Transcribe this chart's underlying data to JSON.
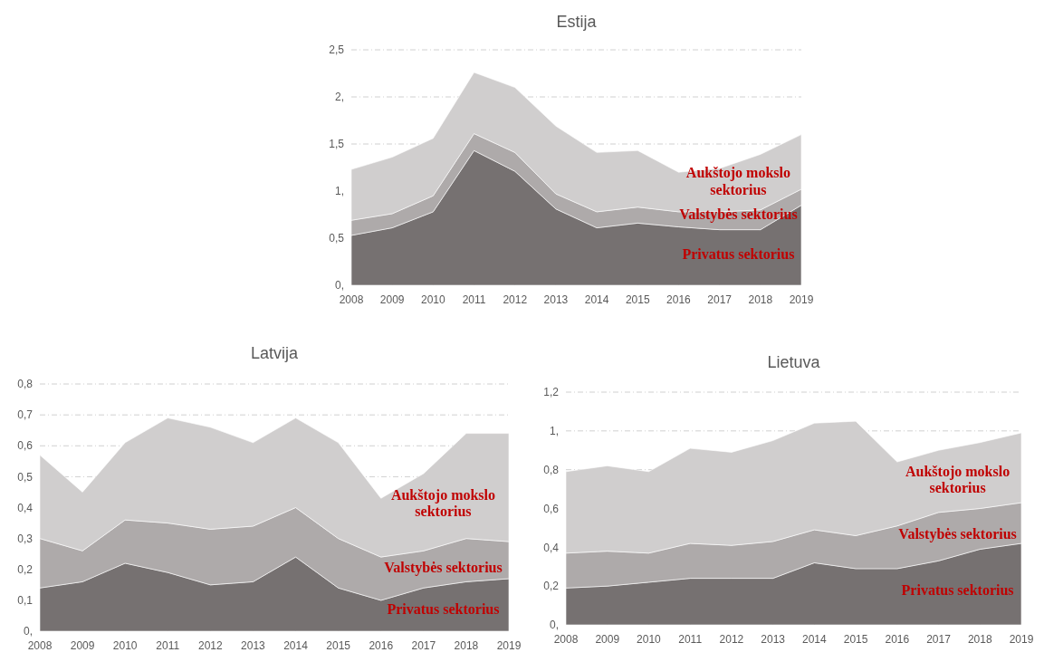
{
  "chart_data": [
    {
      "type": "area",
      "title": "Estija",
      "stacked": true,
      "grid": "y",
      "categories": [
        "2008",
        "2009",
        "2010",
        "2011",
        "2012",
        "2013",
        "2014",
        "2015",
        "2016",
        "2017",
        "2018",
        "2019"
      ],
      "ylim": [
        0,
        2.5
      ],
      "yticks": [
        {
          "value": 0,
          "label": "0,"
        },
        {
          "value": 0.5,
          "label": "0,5"
        },
        {
          "value": 1,
          "label": "1,"
        },
        {
          "value": 1.5,
          "label": "1,5"
        },
        {
          "value": 2,
          "label": "2,"
        },
        {
          "value": 2.5,
          "label": "2,5"
        }
      ],
      "series": [
        {
          "name": "Privatus sektorius",
          "color": "#767171",
          "values": [
            0.53,
            0.61,
            0.78,
            1.43,
            1.21,
            0.81,
            0.61,
            0.66,
            0.62,
            0.59,
            0.59,
            0.85
          ]
        },
        {
          "name": "Valstybės sektorius",
          "color": "#aeaaaa",
          "values": [
            0.16,
            0.15,
            0.17,
            0.18,
            0.2,
            0.16,
            0.17,
            0.17,
            0.16,
            0.19,
            0.21,
            0.17
          ]
        },
        {
          "name": "Aukštojo mokslo sektorius",
          "color": "#d0cece",
          "values": [
            0.54,
            0.6,
            0.61,
            0.65,
            0.69,
            0.72,
            0.63,
            0.6,
            0.42,
            0.46,
            0.59,
            0.58
          ]
        }
      ]
    },
    {
      "type": "area",
      "title": "Latvija",
      "stacked": true,
      "grid": "y",
      "categories": [
        "2008",
        "2009",
        "2010",
        "2011",
        "2012",
        "2013",
        "2014",
        "2015",
        "2016",
        "2017",
        "2018",
        "2019"
      ],
      "ylim": [
        0,
        0.8
      ],
      "yticks": [
        {
          "value": 0,
          "label": "0,"
        },
        {
          "value": 0.1,
          "label": "0,1"
        },
        {
          "value": 0.2,
          "label": "0,2"
        },
        {
          "value": 0.3,
          "label": "0,3"
        },
        {
          "value": 0.4,
          "label": "0,4"
        },
        {
          "value": 0.5,
          "label": "0,5"
        },
        {
          "value": 0.6,
          "label": "0,6"
        },
        {
          "value": 0.7,
          "label": "0,7"
        },
        {
          "value": 0.8,
          "label": "0,8"
        }
      ],
      "series": [
        {
          "name": "Privatus sektorius",
          "color": "#767171",
          "values": [
            0.14,
            0.16,
            0.22,
            0.19,
            0.15,
            0.16,
            0.24,
            0.14,
            0.1,
            0.14,
            0.16,
            0.17
          ]
        },
        {
          "name": "Valstybės sektorius",
          "color": "#aeaaaa",
          "values": [
            0.16,
            0.1,
            0.14,
            0.16,
            0.18,
            0.18,
            0.16,
            0.16,
            0.14,
            0.12,
            0.14,
            0.12
          ]
        },
        {
          "name": "Aukštojo mokslo sektorius",
          "color": "#d0cece",
          "values": [
            0.27,
            0.19,
            0.25,
            0.34,
            0.33,
            0.27,
            0.29,
            0.31,
            0.19,
            0.25,
            0.34,
            0.35
          ]
        }
      ]
    },
    {
      "type": "area",
      "title": "Lietuva",
      "stacked": true,
      "grid": "y",
      "categories": [
        "2008",
        "2009",
        "2010",
        "2011",
        "2012",
        "2013",
        "2014",
        "2015",
        "2016",
        "2017",
        "2018",
        "2019"
      ],
      "ylim": [
        0,
        1.2
      ],
      "yticks": [
        {
          "value": 0,
          "label": "0,"
        },
        {
          "value": 0.2,
          "label": "0,2"
        },
        {
          "value": 0.4,
          "label": "0,4"
        },
        {
          "value": 0.6,
          "label": "0,6"
        },
        {
          "value": 0.8,
          "label": "0,8"
        },
        {
          "value": 1,
          "label": "1,"
        },
        {
          "value": 1.2,
          "label": "1,2"
        }
      ],
      "series": [
        {
          "name": "Privatus sektorius",
          "color": "#767171",
          "values": [
            0.19,
            0.2,
            0.22,
            0.24,
            0.24,
            0.24,
            0.32,
            0.29,
            0.29,
            0.33,
            0.39,
            0.42
          ]
        },
        {
          "name": "Valstybės sektorius",
          "color": "#aeaaaa",
          "values": [
            0.18,
            0.18,
            0.15,
            0.18,
            0.17,
            0.19,
            0.17,
            0.17,
            0.22,
            0.25,
            0.21,
            0.21
          ]
        },
        {
          "name": "Aukštojo mokslo sektorius",
          "color": "#d0cece",
          "values": [
            0.42,
            0.44,
            0.42,
            0.49,
            0.48,
            0.52,
            0.55,
            0.59,
            0.33,
            0.32,
            0.34,
            0.36
          ]
        }
      ]
    }
  ]
}
